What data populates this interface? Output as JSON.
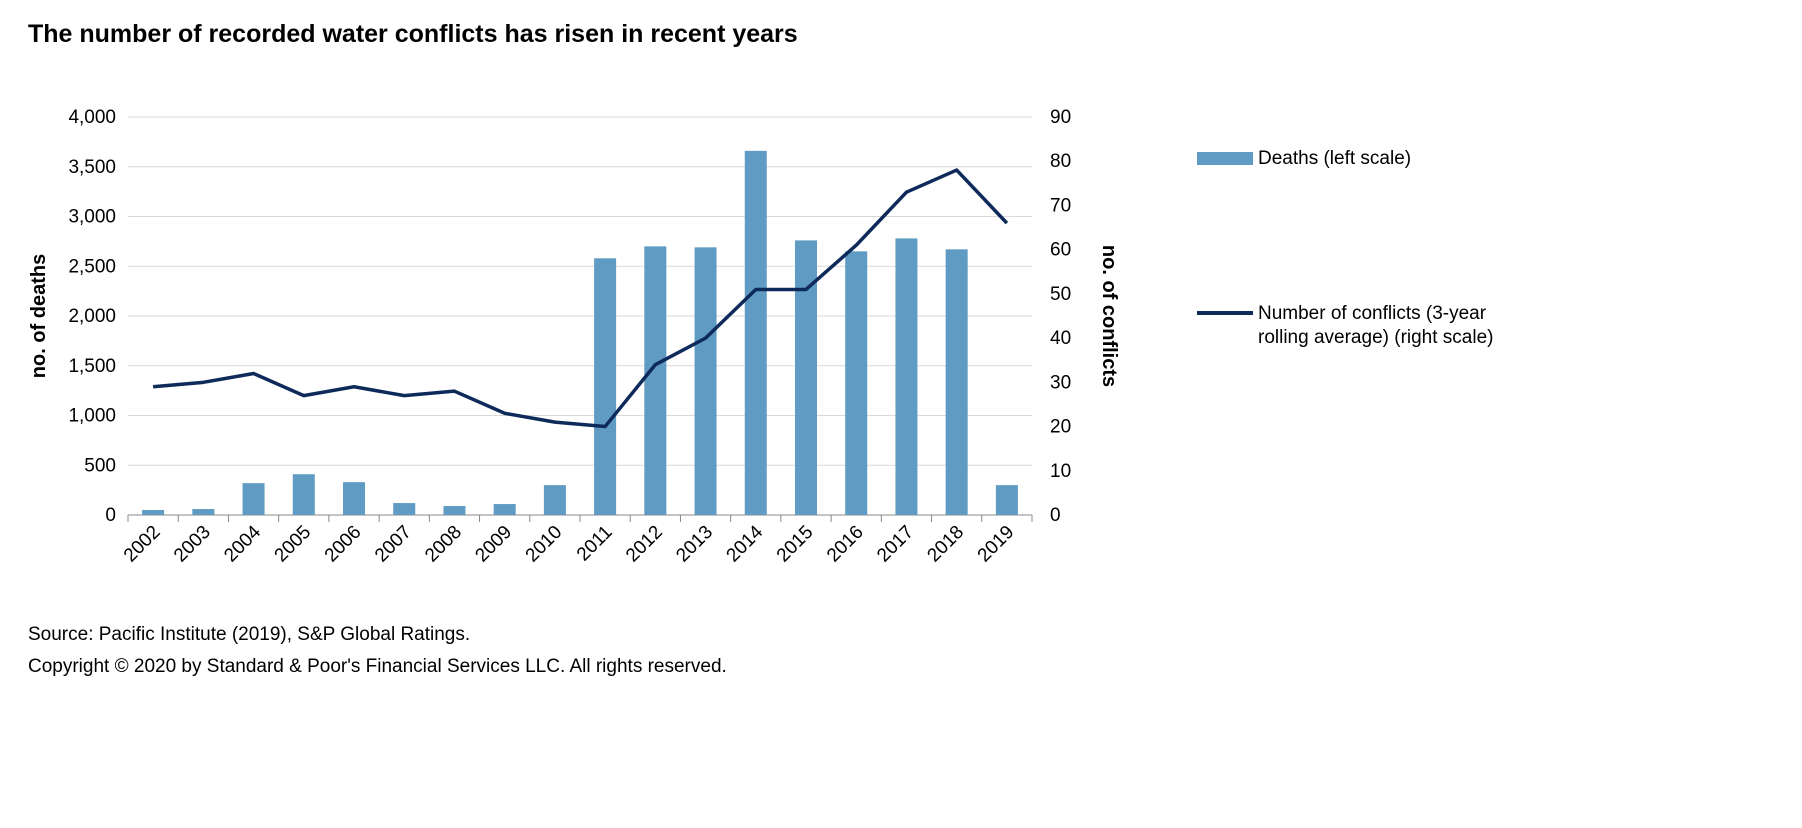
{
  "chart_data": {
    "type": "bar+line",
    "title": "The number of recorded water conflicts has risen in recent years",
    "categories": [
      "2002",
      "2003",
      "2004",
      "2005",
      "2006",
      "2007",
      "2008",
      "2009",
      "2010",
      "2011",
      "2012",
      "2013",
      "2014",
      "2015",
      "2016",
      "2017",
      "2018",
      "2019"
    ],
    "series": [
      {
        "name": "Deaths (left scale)",
        "type": "bar",
        "axis": "left",
        "color": "#5f9bc2",
        "values": [
          50,
          60,
          320,
          410,
          330,
          120,
          90,
          110,
          300,
          2580,
          2700,
          2690,
          3660,
          2760,
          2650,
          2780,
          2670,
          300
        ]
      },
      {
        "name": "Number of conflicts (3-year rolling average) (right scale)",
        "type": "line",
        "axis": "right",
        "color": "#0e2a5a",
        "values": [
          29,
          30,
          32,
          27,
          29,
          27,
          28,
          23,
          21,
          20,
          34,
          40,
          51,
          51,
          61,
          73,
          78,
          66
        ]
      }
    ],
    "ylabel_left": "no. of deaths",
    "ylabel_right": "no. of conflicts",
    "ylim_left": [
      0,
      4000
    ],
    "ylim_right": [
      0,
      90
    ],
    "yticks_left": [
      "0",
      "500",
      "1,000",
      "1,500",
      "2,000",
      "2,500",
      "3,000",
      "3,500",
      "4,000"
    ],
    "yticks_right": [
      "0",
      "10",
      "20",
      "30",
      "40",
      "50",
      "60",
      "70",
      "80",
      "90"
    ],
    "grid": true,
    "legend": "right"
  },
  "footer": {
    "source": "Source: Pacific Institute (2019), S&P Global Ratings.",
    "copyright": "Copyright © 2020 by Standard & Poor's Financial Services LLC. All rights reserved."
  }
}
